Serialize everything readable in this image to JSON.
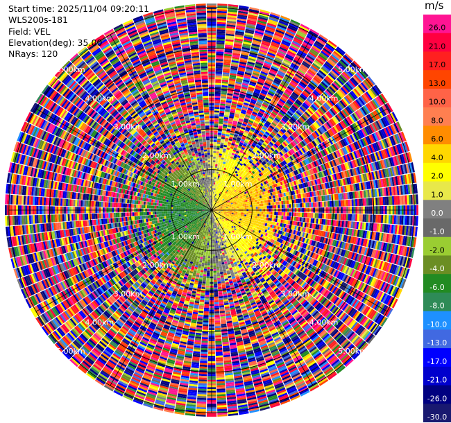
{
  "info": {
    "start_time": "Start time: 2025/11/04 09:20:11",
    "instrument": "WLS200s-181",
    "field": "Field: VEL",
    "elevation": "Elevation(deg): 35.00",
    "nrays": "NRays: 120"
  },
  "colorbar": {
    "unit": "m/s",
    "levels": [
      {
        "label": "26.0",
        "color": "#ff1493"
      },
      {
        "label": "21.0",
        "color": "#ff0040"
      },
      {
        "label": "17.0",
        "color": "#ff2020"
      },
      {
        "label": "13.0",
        "color": "#ff4500"
      },
      {
        "label": "10.0",
        "color": "#ff6347"
      },
      {
        "label": "8.0",
        "color": "#ff7f50"
      },
      {
        "label": "6.0",
        "color": "#ff8c00"
      },
      {
        "label": "4.0",
        "color": "#ffd700"
      },
      {
        "label": "2.0",
        "color": "#ffff00"
      },
      {
        "label": "1.0",
        "color": "#e8e84a"
      },
      {
        "label": "0.0",
        "color": "#808080"
      },
      {
        "label": "-1.0",
        "color": "#696969"
      },
      {
        "label": "-2.0",
        "color": "#9acd32"
      },
      {
        "label": "-4.0",
        "color": "#6b8e23"
      },
      {
        "label": "-6.0",
        "color": "#228b22"
      },
      {
        "label": "-8.0",
        "color": "#2e8b57"
      },
      {
        "label": "-10.0",
        "color": "#1e90ff"
      },
      {
        "label": "-13.0",
        "color": "#4169e1"
      },
      {
        "label": "-17.0",
        "color": "#0000ff"
      },
      {
        "label": "-21.0",
        "color": "#0000cd"
      },
      {
        "label": "-26.0",
        "color": "#000080"
      },
      {
        "label": "-30.0",
        "color": "#191970"
      }
    ]
  },
  "chart_data": {
    "type": "heatmap",
    "projection": "polar PPI",
    "field": "VEL",
    "units": "m/s",
    "elevation_deg": 35.0,
    "n_rays": 120,
    "range_rings_km": [
      1.0,
      2.0,
      3.0,
      4.0,
      5.0
    ],
    "range_ring_labels": [
      "1.00km",
      "2.00km",
      "3.00km",
      "4.00km",
      "5.00km"
    ],
    "vmin": -30.0,
    "vmax": 30.0,
    "note": "Values beyond ~2 km are noise; inner region shows negative (blue/green) on west side, positive (yellow/orange/red) on east side."
  }
}
